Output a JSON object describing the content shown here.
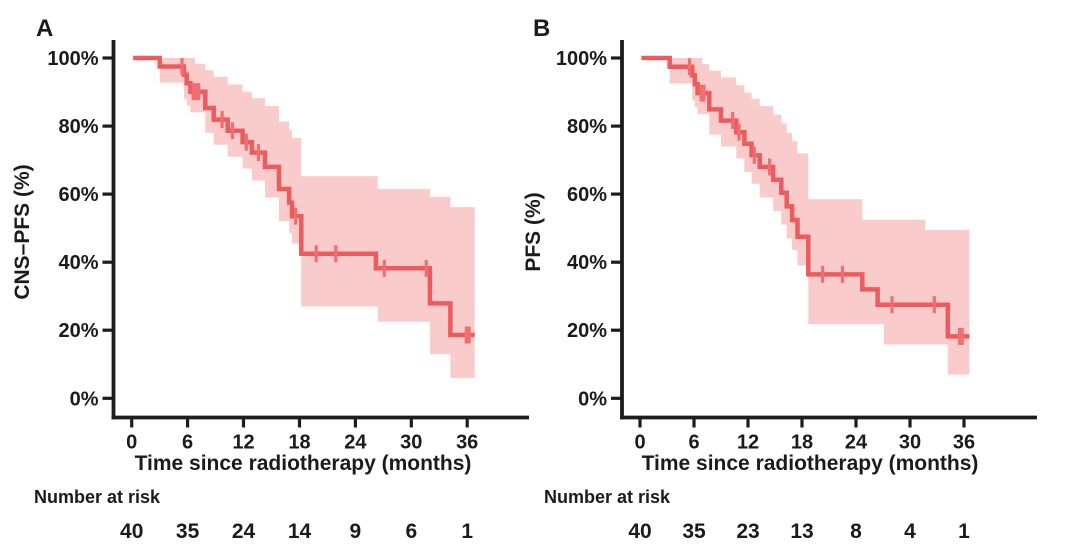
{
  "figure": {
    "colors": {
      "axis": "#1c1c1c",
      "text": "#1b1b1b",
      "censor": "#ef6e70",
      "background": "#ffffff"
    }
  },
  "chart_data": [
    {
      "type": "line",
      "subtype": "kaplan-meier-step",
      "panel_letter": "A",
      "ylabel": "CNS–PFS (%)",
      "xlabel": "Time since radiotherapy (months)",
      "x_ticks": [
        0,
        6,
        12,
        18,
        24,
        30,
        36
      ],
      "y_tick_values": [
        100,
        80,
        60,
        40,
        20,
        0
      ],
      "y_tick_labels": [
        "100%",
        "80%",
        "60%",
        "40%",
        "20%",
        "0%"
      ],
      "ylim": [
        0,
        100
      ],
      "xlim": [
        0,
        42
      ],
      "grid": false,
      "legend": "none",
      "curve_color": "#ec5c5e",
      "band_color": "#f9cccb",
      "start": [
        0.15,
        100
      ],
      "steps": [
        [
          3.0,
          97.5
        ],
        [
          5.6,
          95.1
        ],
        [
          5.9,
          92.6
        ],
        [
          6.3,
          90.1
        ],
        [
          7.9,
          85.3
        ],
        [
          8.8,
          81.9
        ],
        [
          10.3,
          78.6
        ],
        [
          11.9,
          75.3
        ],
        [
          12.9,
          72.2
        ],
        [
          14.3,
          68.0
        ],
        [
          15.8,
          61.5
        ],
        [
          16.9,
          57.5
        ],
        [
          17.2,
          53.5
        ],
        [
          18.2,
          42.5
        ],
        [
          26.2,
          38.2
        ],
        [
          32.0,
          27.9
        ],
        [
          34.2,
          18.6
        ]
      ],
      "end_month": 36.8,
      "censors": [
        [
          5.4,
          97.5
        ],
        [
          6.6,
          90.1
        ],
        [
          6.9,
          90.1
        ],
        [
          7.2,
          90.1
        ],
        [
          9.7,
          81.9
        ],
        [
          10.8,
          78.6
        ],
        [
          12.3,
          75.3
        ],
        [
          13.6,
          72.2
        ],
        [
          17.6,
          53.5
        ],
        [
          19.8,
          42.5
        ],
        [
          21.9,
          42.5
        ],
        [
          27.1,
          38.2
        ],
        [
          31.6,
          38.2
        ],
        [
          35.9,
          18.6
        ],
        [
          36.2,
          18.6
        ]
      ],
      "band": [
        [
          3.0,
          92.7,
          100
        ],
        [
          5.6,
          88.0,
          100
        ],
        [
          5.9,
          86.0,
          100
        ],
        [
          6.3,
          84.0,
          100
        ],
        [
          6.8,
          84.0,
          98.3
        ],
        [
          7.9,
          78.0,
          96.4
        ],
        [
          8.8,
          74.5,
          94.5
        ],
        [
          10.3,
          71.0,
          92.2
        ],
        [
          11.9,
          67.5,
          90.1
        ],
        [
          12.9,
          64.0,
          88.2
        ],
        [
          14.3,
          59.0,
          85.9
        ],
        [
          15.8,
          52.0,
          81.3
        ],
        [
          16.9,
          48.5,
          78.8
        ],
        [
          17.2,
          45.5,
          76.5
        ],
        [
          18.2,
          27.0,
          65.3
        ],
        [
          26.4,
          22.5,
          61.5
        ],
        [
          32.0,
          13.0,
          59.2
        ],
        [
          34.2,
          6.0,
          56.2
        ]
      ],
      "number_at_risk": {
        "label": "Number at risk",
        "times": [
          0,
          6,
          12,
          18,
          24,
          30,
          36
        ],
        "counts": [
          40,
          35,
          24,
          14,
          9,
          6,
          1
        ]
      }
    },
    {
      "type": "line",
      "subtype": "kaplan-meier-step",
      "panel_letter": "B",
      "ylabel": "PFS (%)",
      "xlabel": "Time since radiotherapy (months)",
      "x_ticks": [
        0,
        6,
        12,
        18,
        24,
        30,
        36
      ],
      "y_tick_values": [
        100,
        80,
        60,
        40,
        20,
        0
      ],
      "y_tick_labels": [
        "100%",
        "80%",
        "60%",
        "40%",
        "20%",
        "0%"
      ],
      "ylim": [
        0,
        100
      ],
      "xlim": [
        0,
        42
      ],
      "grid": false,
      "legend": "none",
      "curve_color": "#ec5c5e",
      "band_color": "#f9cccb",
      "start": [
        0.15,
        100
      ],
      "steps": [
        [
          3.3,
          97.4
        ],
        [
          5.8,
          94.9
        ],
        [
          6.1,
          92.3
        ],
        [
          6.4,
          89.7
        ],
        [
          7.7,
          84.9
        ],
        [
          9.0,
          81.6
        ],
        [
          10.7,
          78.2
        ],
        [
          11.6,
          74.8
        ],
        [
          12.4,
          71.4
        ],
        [
          13.3,
          68.0
        ],
        [
          14.8,
          64.2
        ],
        [
          15.7,
          60.4
        ],
        [
          16.3,
          56.4
        ],
        [
          16.9,
          52.4
        ],
        [
          17.5,
          47.5
        ],
        [
          18.7,
          36.4
        ],
        [
          24.7,
          32.0
        ],
        [
          26.4,
          27.5
        ],
        [
          34.2,
          18.2
        ]
      ],
      "end_month": 36.6,
      "censors": [
        [
          5.5,
          97.4
        ],
        [
          6.8,
          89.7
        ],
        [
          7.1,
          89.7
        ],
        [
          10.3,
          81.6
        ],
        [
          11.0,
          78.2
        ],
        [
          12.7,
          71.4
        ],
        [
          14.4,
          68.0
        ],
        [
          20.3,
          36.4
        ],
        [
          22.5,
          36.4
        ],
        [
          28.0,
          27.5
        ],
        [
          32.7,
          27.5
        ],
        [
          35.5,
          18.2
        ],
        [
          35.8,
          18.2
        ]
      ],
      "band": [
        [
          3.3,
          92.5,
          100
        ],
        [
          5.8,
          87.5,
          100
        ],
        [
          6.1,
          85.5,
          100
        ],
        [
          6.4,
          83.5,
          100
        ],
        [
          6.9,
          83.5,
          98.2
        ],
        [
          7.7,
          77.5,
          96.3
        ],
        [
          9.0,
          74.0,
          94.3
        ],
        [
          10.7,
          70.5,
          92.0
        ],
        [
          11.6,
          66.5,
          89.8
        ],
        [
          12.4,
          63.0,
          88.0
        ],
        [
          13.3,
          59.0,
          85.8
        ],
        [
          14.8,
          55.0,
          83.3
        ],
        [
          15.7,
          51.0,
          80.8
        ],
        [
          16.3,
          47.0,
          78.0
        ],
        [
          16.9,
          43.5,
          75.5
        ],
        [
          17.5,
          39.0,
          72.0
        ],
        [
          18.7,
          21.8,
          58.5
        ],
        [
          24.7,
          21.8,
          52.5
        ],
        [
          27.1,
          15.8,
          52.5
        ],
        [
          31.7,
          15.8,
          49.5
        ],
        [
          34.2,
          7.0,
          49.5
        ]
      ],
      "number_at_risk": {
        "label": "Number at risk",
        "times": [
          0,
          6,
          12,
          18,
          24,
          30,
          36
        ],
        "counts": [
          40,
          35,
          23,
          13,
          8,
          4,
          1
        ]
      }
    }
  ]
}
